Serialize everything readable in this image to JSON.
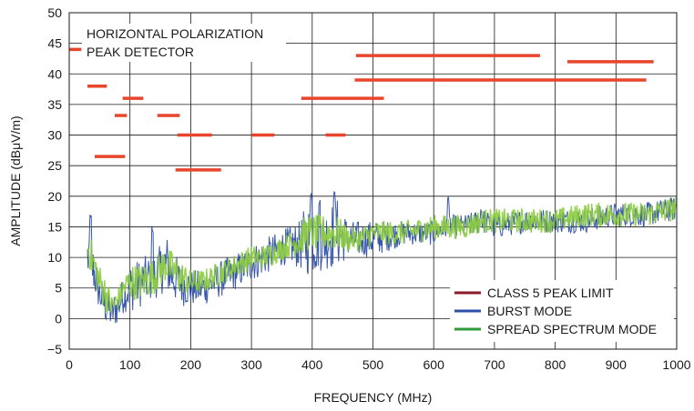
{
  "chart_data": {
    "type": "line",
    "xlabel": "FREQUENCY (MHz)",
    "ylabel": "AMPLITUDE (dBμV/m)",
    "xlim": [
      0,
      1000
    ],
    "ylim": [
      -5,
      50
    ],
    "x_ticks": [
      0,
      100,
      200,
      300,
      400,
      500,
      600,
      700,
      800,
      900,
      1000
    ],
    "x_tick_labels": [
      "0",
      "100",
      "200",
      "300",
      "400",
      "500",
      "600",
      "700",
      "800",
      "900",
      "1000"
    ],
    "y_ticks": [
      -5,
      0,
      5,
      10,
      15,
      20,
      25,
      30,
      35,
      40,
      45,
      50
    ],
    "y_tick_labels": [
      "−5",
      "0",
      "5",
      "10",
      "15",
      "20",
      "25",
      "30",
      "35",
      "40",
      "45",
      "50"
    ],
    "grid": true,
    "legend_position": "bottom-right",
    "annotation_lines": [
      "HORIZONTAL POLARIZATION",
      "PEAK DETECTOR"
    ],
    "series": [
      {
        "name": "CLASS 5 PEAK LIMIT",
        "kind": "segments",
        "color": "#e8452c",
        "segments": [
          {
            "x": [
              0,
              20
            ],
            "y": 44
          },
          {
            "x": [
              30,
              62
            ],
            "y": 38
          },
          {
            "x": [
              42,
              92
            ],
            "y": 26.5
          },
          {
            "x": [
              75,
              95
            ],
            "y": 33.2
          },
          {
            "x": [
              88,
              122
            ],
            "y": 36
          },
          {
            "x": [
              145,
              182
            ],
            "y": 33.2
          },
          {
            "x": [
              178,
              235
            ],
            "y": 30
          },
          {
            "x": [
              175,
              250
            ],
            "y": 24.3
          },
          {
            "x": [
              300,
              338
            ],
            "y": 30
          },
          {
            "x": [
              382,
              440
            ],
            "y": 36
          },
          {
            "x": [
              422,
              455
            ],
            "y": 30
          },
          {
            "x": [
              440,
              518
            ],
            "y": 36
          },
          {
            "x": [
              472,
              775
            ],
            "y": 43
          },
          {
            "x": [
              470,
              950
            ],
            "y": 39
          },
          {
            "x": [
              820,
              962
            ],
            "y": 42
          }
        ]
      },
      {
        "name": "BURST MODE",
        "kind": "noisy-trace",
        "color": "#2e4fa8",
        "x": [
          30,
          40,
          50,
          60,
          70,
          80,
          90,
          100,
          120,
          140,
          150,
          160,
          170,
          180,
          200,
          220,
          240,
          260,
          280,
          300,
          320,
          340,
          360,
          380,
          390,
          400,
          420,
          440,
          460,
          480,
          500,
          550,
          600,
          620,
          650,
          680,
          700,
          750,
          800,
          850,
          900,
          950,
          1000
        ],
        "y": [
          10,
          8,
          4,
          2,
          1,
          2,
          4,
          5,
          6,
          7,
          8,
          9,
          7,
          6,
          5,
          5,
          6,
          7,
          8,
          9,
          10,
          11,
          12,
          12,
          13,
          13,
          13,
          14,
          13,
          13,
          13,
          14,
          14,
          15,
          15,
          16,
          15,
          16,
          16,
          16,
          17,
          17,
          18
        ],
        "amplitude": [
          4,
          4,
          3,
          3,
          3,
          3,
          3,
          4,
          4,
          4,
          4,
          5,
          4,
          4,
          3,
          3,
          3,
          3,
          3,
          3,
          3,
          3,
          3,
          4,
          6,
          6,
          5,
          6,
          3,
          3,
          3,
          2,
          2,
          2,
          2,
          2,
          2,
          2,
          2,
          2,
          2,
          2,
          2
        ],
        "peaks": [
          {
            "x": 35,
            "y": 18
          },
          {
            "x": 137,
            "y": 15.5
          },
          {
            "x": 398,
            "y": 20.5
          },
          {
            "x": 412,
            "y": 20
          },
          {
            "x": 436,
            "y": 21
          },
          {
            "x": 624,
            "y": 20.5
          },
          {
            "x": 678,
            "y": 18
          }
        ]
      },
      {
        "name": "SPREAD SPECTRUM MODE",
        "kind": "noisy-trace",
        "color": "#8ccc3f",
        "x": [
          30,
          40,
          50,
          60,
          70,
          80,
          90,
          100,
          120,
          140,
          150,
          160,
          170,
          180,
          200,
          220,
          240,
          260,
          280,
          300,
          320,
          340,
          360,
          380,
          390,
          400,
          420,
          440,
          460,
          480,
          500,
          550,
          600,
          620,
          650,
          680,
          700,
          750,
          800,
          850,
          900,
          950,
          1000
        ],
        "y": [
          12,
          9,
          6,
          4,
          2,
          3,
          5,
          6,
          6,
          7,
          8,
          9,
          8,
          7,
          6,
          6,
          7,
          8,
          9,
          10,
          10,
          11,
          12,
          13,
          14,
          14,
          14,
          14,
          13,
          13,
          14,
          14,
          15,
          15,
          15,
          16,
          16,
          16,
          16,
          17,
          17,
          17,
          18
        ],
        "amplitude": [
          3,
          3,
          3,
          3,
          2,
          2,
          2,
          3,
          3,
          3,
          3,
          3,
          3,
          3,
          2,
          2,
          2,
          2,
          2,
          2,
          2,
          2,
          2,
          3,
          3,
          3,
          3,
          3,
          2,
          2,
          2,
          2,
          2,
          2,
          2,
          2,
          2,
          2,
          2,
          2,
          2,
          2,
          2
        ]
      }
    ],
    "colors": {
      "axis": "#1a1a1a",
      "grid": "#1a1a1a",
      "legend_limit": "#8b1a2a",
      "legend_burst": "#2e4fa8",
      "legend_spread": "#2f9b3a"
    }
  }
}
